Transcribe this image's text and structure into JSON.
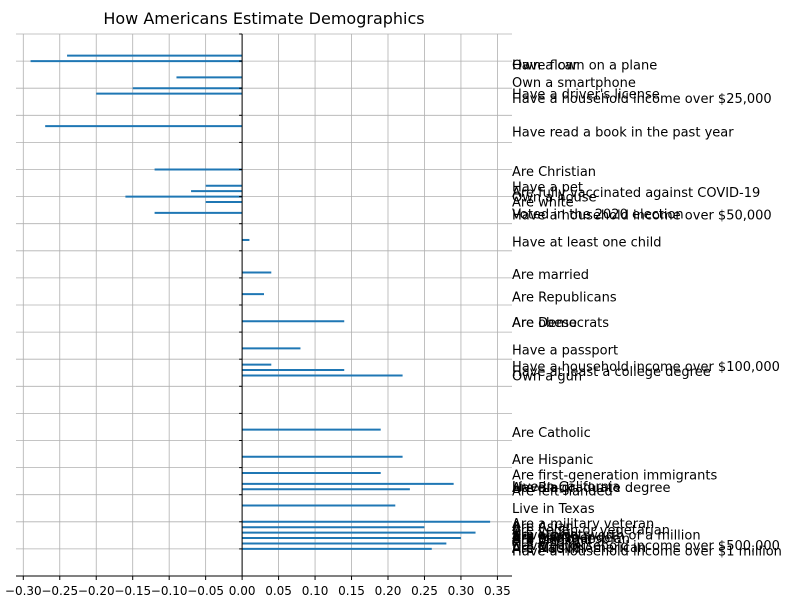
{
  "chart_data": {
    "type": "bar",
    "orientation": "horizontal",
    "title": "How Americans Estimate Demographics",
    "xlabel": "",
    "ylabel": "",
    "xlim": [
      -0.31,
      0.37
    ],
    "grid": true,
    "bar_color": "#1f77b4",
    "x_ticks": [
      "−0.30",
      "−0.25",
      "−0.20",
      "−0.15",
      "−0.10",
      "−0.05",
      "0.00",
      "0.05",
      "0.10",
      "0.15",
      "0.20",
      "0.25",
      "0.30",
      "0.35"
    ],
    "x_tick_values": [
      -0.3,
      -0.25,
      -0.2,
      -0.15,
      -0.1,
      -0.05,
      0.0,
      0.05,
      0.1,
      0.15,
      0.2,
      0.25,
      0.3,
      0.35
    ],
    "y_range": [
      0,
      100
    ],
    "y_gridlines": [
      0,
      5,
      10,
      15,
      20,
      25,
      30,
      35,
      40,
      45,
      50,
      55,
      60,
      65,
      70,
      75,
      80,
      85,
      90,
      95,
      100
    ],
    "bars": [
      {
        "y": 4,
        "value": -0.24
      },
      {
        "y": 5,
        "value": -0.29
      },
      {
        "y": 8,
        "value": -0.09
      },
      {
        "y": 10,
        "value": -0.15
      },
      {
        "y": 11,
        "value": -0.2
      },
      {
        "y": 17,
        "value": -0.27
      },
      {
        "y": 25,
        "value": -0.12
      },
      {
        "y": 28,
        "value": -0.05
      },
      {
        "y": 29,
        "value": -0.07
      },
      {
        "y": 30,
        "value": -0.16
      },
      {
        "y": 31,
        "value": -0.05
      },
      {
        "y": 33,
        "value": -0.12
      },
      {
        "y": 38,
        "value": 0.01
      },
      {
        "y": 44,
        "value": 0.04
      },
      {
        "y": 48,
        "value": 0.03
      },
      {
        "y": 53,
        "value": 0.14
      },
      {
        "y": 58,
        "value": 0.08
      },
      {
        "y": 61,
        "value": 0.04
      },
      {
        "y": 62,
        "value": 0.14
      },
      {
        "y": 63,
        "value": 0.22
      },
      {
        "y": 73,
        "value": 0.19
      },
      {
        "y": 78,
        "value": 0.22
      },
      {
        "y": 81,
        "value": 0.19
      },
      {
        "y": 83,
        "value": 0.29
      },
      {
        "y": 84,
        "value": 0.23
      },
      {
        "y": 87,
        "value": 0.21
      },
      {
        "y": 90,
        "value": 0.34
      },
      {
        "y": 91,
        "value": 0.25
      },
      {
        "y": 92,
        "value": 0.32
      },
      {
        "y": 93,
        "value": 0.3
      },
      {
        "y": 94,
        "value": 0.28
      },
      {
        "y": 95,
        "value": 0.26
      }
    ],
    "labels": [
      {
        "y": 5.8,
        "text": "Own a car"
      },
      {
        "y": 5.8,
        "text": "Have flown on a plane"
      },
      {
        "y": 9.0,
        "text": "Own a smartphone"
      },
      {
        "y": 11.2,
        "text": "Have a driver's license"
      },
      {
        "y": 12.0,
        "text": "Have a household income over $25,000"
      },
      {
        "y": 18.2,
        "text": "Have read a book in the past year"
      },
      {
        "y": 25.5,
        "text": "Are Christian"
      },
      {
        "y": 28.3,
        "text": "Have a pet"
      },
      {
        "y": 29.3,
        "text": "Are fully vaccinated against COVID-19"
      },
      {
        "y": 30.2,
        "text": "Own a house"
      },
      {
        "y": 31.1,
        "text": "Are white"
      },
      {
        "y": 33.3,
        "text": "Voted in the 2020 election"
      },
      {
        "y": 33.5,
        "text": "Have a household income over $50,000"
      },
      {
        "y": 38.5,
        "text": "Have at least one child"
      },
      {
        "y": 44.5,
        "text": "Are married"
      },
      {
        "y": 48.6,
        "text": "Are Republicans"
      },
      {
        "y": 53.3,
        "text": "Are Democrats"
      },
      {
        "y": 53.3,
        "text": "Are obese"
      },
      {
        "y": 58.4,
        "text": "Have a passport"
      },
      {
        "y": 61.4,
        "text": "Have a household income over $100,000"
      },
      {
        "y": 62.4,
        "text": "Have at least a college degree"
      },
      {
        "y": 63.2,
        "text": "Own a gun"
      },
      {
        "y": 73.6,
        "text": "Are Catholic"
      },
      {
        "y": 78.6,
        "text": "Are Hispanic"
      },
      {
        "y": 81.5,
        "text": "Are first-generation immigrants"
      },
      {
        "y": 83.6,
        "text": "Live in California"
      },
      {
        "y": 83.8,
        "text": "Have a graduate degree"
      },
      {
        "y": 83.8,
        "text": "Are Black"
      },
      {
        "y": 84.4,
        "text": "Are left-handed"
      },
      {
        "y": 87.6,
        "text": "Live in Texas"
      },
      {
        "y": 90.4,
        "text": "Are a military veteran"
      },
      {
        "y": 91.0,
        "text": "Are Asian"
      },
      {
        "y": 91.6,
        "text": "Are vegan or vegetarian"
      },
      {
        "y": 92.4,
        "text": "Are atheists"
      },
      {
        "y": 92.5,
        "text": "Have a net worth of a million"
      },
      {
        "y": 92.8,
        "text": "Are Jewish"
      },
      {
        "y": 93.0,
        "text": "Are transgender"
      },
      {
        "y": 93.2,
        "text": "Are gay or lesbian"
      },
      {
        "y": 93.4,
        "text": "Are bisexual"
      },
      {
        "y": 93.6,
        "text": "Are Muslim"
      },
      {
        "y": 94.5,
        "text": "Have a household income over $500,000"
      },
      {
        "y": 94.8,
        "text": "Are Native American"
      },
      {
        "y": 94.8,
        "text": "Are Muslim"
      },
      {
        "y": 95.0,
        "text": "Are Muslim"
      },
      {
        "y": 95.5,
        "text": "Have a household income over $1 million"
      }
    ]
  }
}
